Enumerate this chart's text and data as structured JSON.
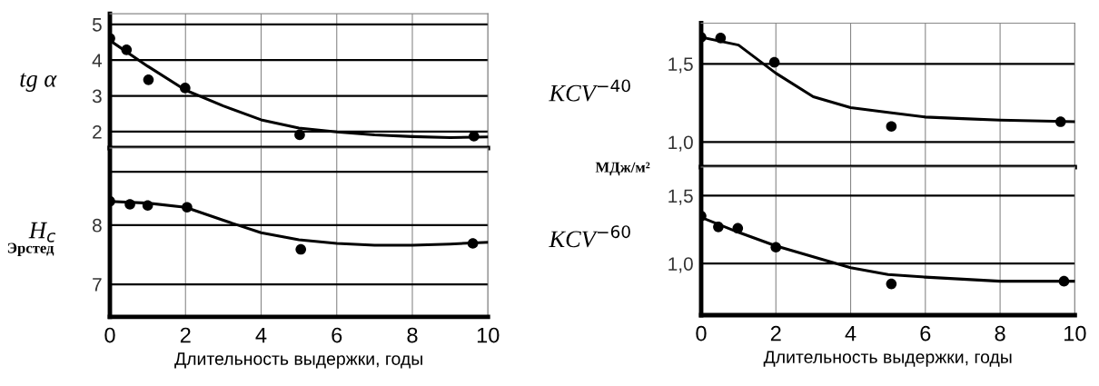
{
  "chart_data": [
    {
      "type": "scatter",
      "ylabel": "tg α",
      "xlim": [
        0,
        10
      ],
      "ylim": [
        1.54,
        5.3
      ],
      "xticks": [
        0,
        2,
        4,
        6,
        8,
        10
      ],
      "yticks": [
        2,
        3,
        4,
        5
      ],
      "tick_labels": "y",
      "grid": true,
      "series": [
        {
          "type": "scatter",
          "marker": "circle",
          "color": "#000000",
          "x": [
            0,
            0.44,
            1.02,
            1.99,
            5.02,
            9.63
          ],
          "values": [
            4.61,
            4.29,
            3.45,
            3.22,
            1.91,
            1.87
          ]
        },
        {
          "type": "line",
          "marker": "none",
          "line_style": "solid",
          "color": "#000000",
          "x": [
            0,
            1,
            2,
            3,
            4,
            5,
            6,
            7,
            8,
            9,
            10
          ],
          "values": [
            4.55,
            3.83,
            3.16,
            2.72,
            2.33,
            2.1,
            1.99,
            1.91,
            1.86,
            1.83,
            1.85
          ]
        }
      ]
    },
    {
      "type": "scatter",
      "ylabel": "H$_{c}$",
      "annotations": [
        "Эрстед"
      ],
      "xlabel": "Длительность выдержки, годы",
      "xlim": [
        0,
        10
      ],
      "ylim": [
        6.45,
        9.3
      ],
      "xticks": [
        0,
        2,
        4,
        6,
        8,
        10
      ],
      "yticks": [
        7,
        8,
        {
          "value": 8.9,
          "label": null
        }
      ],
      "grid": true,
      "series": [
        {
          "type": "scatter",
          "marker": "circle",
          "color": "#000000",
          "x": [
            0,
            0.53,
            1.0,
            2.04,
            5.05,
            9.6
          ],
          "values": [
            8.4,
            8.35,
            8.33,
            8.3,
            7.59,
            7.69
          ]
        },
        {
          "type": "line",
          "marker": "none",
          "line_style": "solid",
          "color": "#000000",
          "x": [
            0,
            1,
            2,
            3,
            4,
            5,
            6,
            7,
            8,
            9,
            10
          ],
          "values": [
            8.4,
            8.37,
            8.3,
            8.08,
            7.87,
            7.75,
            7.69,
            7.66,
            7.66,
            7.68,
            7.71
          ]
        }
      ]
    },
    {
      "type": "scatter",
      "ylabel": "KCV$^{−40}$",
      "annotations": [
        "МДж/м²"
      ],
      "xlim": [
        0,
        10
      ],
      "ylim": [
        0.84,
        1.76
      ],
      "xticks": [
        0,
        2,
        4,
        6,
        8,
        10
      ],
      "yticks": [
        {
          "value": 1.0,
          "label": "1,0"
        },
        {
          "value": 1.5,
          "label": "1,5"
        }
      ],
      "tick_labels": "y",
      "grid": true,
      "series": [
        {
          "type": "scatter",
          "marker": "circle",
          "color": "#000000",
          "x": [
            0,
            0.52,
            1.96,
            5.09,
            9.62
          ],
          "values": [
            1.67,
            1.665,
            1.51,
            1.1,
            1.13
          ]
        },
        {
          "type": "line",
          "marker": "none",
          "line_style": "solid",
          "color": "#000000",
          "x": [
            0,
            1,
            2,
            3,
            4,
            5,
            6,
            7,
            8,
            10
          ],
          "values": [
            1.67,
            1.62,
            1.44,
            1.29,
            1.22,
            1.19,
            1.16,
            1.15,
            1.14,
            1.13
          ]
        }
      ]
    },
    {
      "type": "scatter",
      "ylabel": "KCV$^{−60}$",
      "xlabel": "Длительность выдержки, годы",
      "xlim": [
        0,
        10
      ],
      "ylim": [
        0.62,
        1.71
      ],
      "xticks": [
        0,
        2,
        4,
        6,
        8,
        10
      ],
      "yticks": [
        {
          "value": 1.0,
          "label": "1,0"
        },
        {
          "value": 1.5,
          "label": "1,5"
        }
      ],
      "grid": true,
      "series": [
        {
          "type": "scatter",
          "marker": "circle",
          "color": "#000000",
          "x": [
            0,
            0.46,
            0.98,
            2.0,
            5.09,
            9.71
          ],
          "values": [
            1.35,
            1.27,
            1.26,
            1.12,
            0.85,
            0.87
          ]
        },
        {
          "type": "line",
          "marker": "none",
          "line_style": "solid",
          "color": "#000000",
          "x": [
            0,
            1,
            2,
            3,
            4,
            5,
            6,
            8,
            10
          ],
          "values": [
            1.34,
            1.23,
            1.13,
            1.05,
            0.97,
            0.92,
            0.9,
            0.87,
            0.87
          ]
        }
      ]
    }
  ]
}
